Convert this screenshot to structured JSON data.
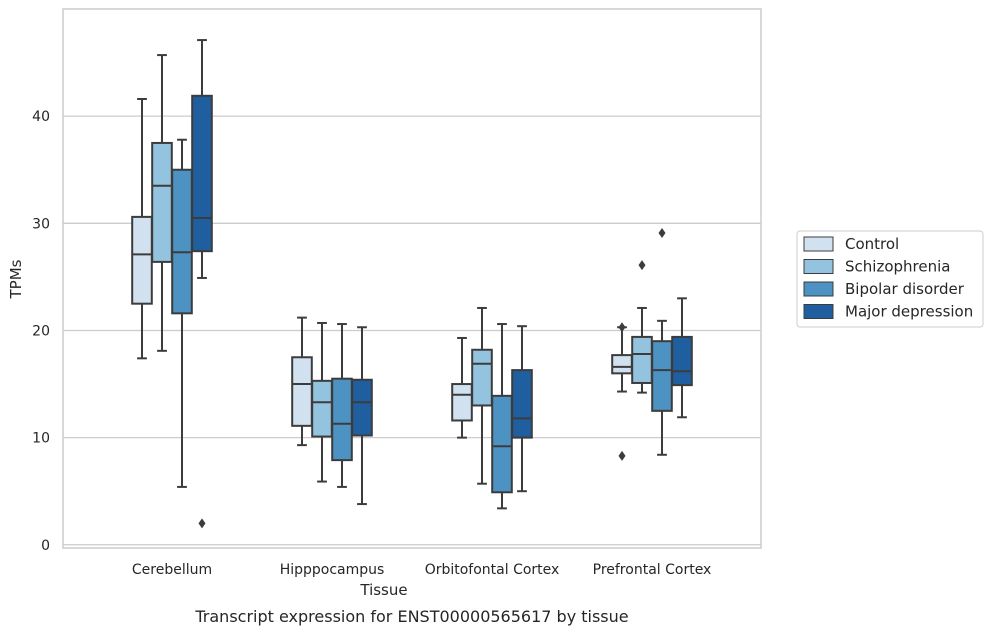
{
  "caption": "Transcript expression for ENST00000565617 by tissue",
  "chart_data": {
    "type": "box",
    "xlabel": "Tissue",
    "ylabel": "TPMs",
    "ylim": [
      -0.3,
      50
    ],
    "yticks": [
      0,
      10,
      20,
      30,
      40
    ],
    "grid": true,
    "legend_position": "right",
    "categories": [
      "Cerebellum",
      "Hipppocampus",
      "Orbitofontal Cortex",
      "Prefrontal Cortex"
    ],
    "series": [
      {
        "name": "Control",
        "color": "#d1e1f0",
        "boxes": [
          {
            "whislo": 17.4,
            "q1": 22.5,
            "med": 27.1,
            "q3": 30.6,
            "whishi": 41.6,
            "fliers": []
          },
          {
            "whislo": 9.3,
            "q1": 11.1,
            "med": 15.0,
            "q3": 17.5,
            "whishi": 21.2,
            "fliers": []
          },
          {
            "whislo": 10.0,
            "q1": 11.6,
            "med": 14.0,
            "q3": 15.0,
            "whishi": 19.3,
            "fliers": []
          },
          {
            "whislo": 14.3,
            "q1": 16.0,
            "med": 16.6,
            "q3": 17.7,
            "whishi": 20.3,
            "fliers": [
              20.3,
              8.3
            ]
          }
        ]
      },
      {
        "name": "Schizophrenia",
        "color": "#93c3df",
        "boxes": [
          {
            "whislo": 18.1,
            "q1": 26.4,
            "med": 33.5,
            "q3": 37.5,
            "whishi": 45.7,
            "fliers": []
          },
          {
            "whislo": 5.9,
            "q1": 10.1,
            "med": 13.3,
            "q3": 15.3,
            "whishi": 20.7,
            "fliers": []
          },
          {
            "whislo": 5.7,
            "q1": 13.0,
            "med": 16.9,
            "q3": 18.2,
            "whishi": 22.1,
            "fliers": []
          },
          {
            "whislo": 14.2,
            "q1": 15.1,
            "med": 17.8,
            "q3": 19.4,
            "whishi": 22.1,
            "fliers": [
              26.1
            ]
          }
        ]
      },
      {
        "name": "Bipolar disorder",
        "color": "#4c92c3",
        "boxes": [
          {
            "whislo": 5.4,
            "q1": 21.6,
            "med": 27.3,
            "q3": 35.0,
            "whishi": 37.8,
            "fliers": []
          },
          {
            "whislo": 5.4,
            "q1": 7.9,
            "med": 11.3,
            "q3": 15.5,
            "whishi": 20.6,
            "fliers": []
          },
          {
            "whislo": 3.4,
            "q1": 4.9,
            "med": 9.2,
            "q3": 13.9,
            "whishi": 20.6,
            "fliers": []
          },
          {
            "whislo": 8.4,
            "q1": 12.5,
            "med": 16.3,
            "q3": 19.0,
            "whishi": 20.9,
            "fliers": [
              29.1
            ]
          }
        ]
      },
      {
        "name": "Major depression",
        "color": "#1f5fa0",
        "boxes": [
          {
            "whislo": 24.9,
            "q1": 27.4,
            "med": 30.5,
            "q3": 41.9,
            "whishi": 47.1,
            "fliers": [
              2.0
            ]
          },
          {
            "whislo": 3.8,
            "q1": 10.2,
            "med": 13.3,
            "q3": 15.4,
            "whishi": 20.3,
            "fliers": []
          },
          {
            "whislo": 5.0,
            "q1": 10.0,
            "med": 11.8,
            "q3": 16.3,
            "whishi": 20.4,
            "fliers": []
          },
          {
            "whislo": 11.9,
            "q1": 14.9,
            "med": 16.2,
            "q3": 19.4,
            "whishi": 23.0,
            "fliers": []
          }
        ]
      }
    ]
  }
}
